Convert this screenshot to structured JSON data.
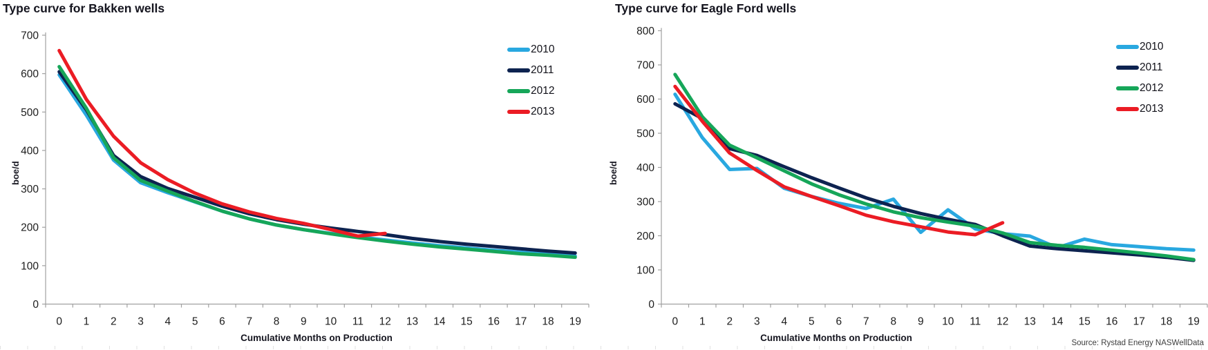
{
  "source": "Source: Rystad Energy NASWellData",
  "chart_data": [
    {
      "type": "line",
      "title": "Type curve for Bakken wells",
      "xlabel": "Cumulative Months on Production",
      "ylabel": "boe/d",
      "ylim": [
        0,
        700
      ],
      "ytick_step": 100,
      "grid": false,
      "legend_position": "inside-upper-right",
      "x": [
        0,
        1,
        2,
        3,
        4,
        5,
        6,
        7,
        8,
        9,
        10,
        11,
        12,
        13,
        14,
        15,
        16,
        17,
        18,
        19
      ],
      "series": [
        {
          "name": "2010",
          "color": "#29A8E0",
          "values": [
            597,
            492,
            375,
            316,
            290,
            266,
            242,
            222,
            206,
            194,
            184,
            175,
            167,
            159,
            152,
            146,
            140,
            135,
            130,
            125
          ]
        },
        {
          "name": "2011",
          "color": "#0D2350",
          "values": [
            605,
            506,
            387,
            332,
            301,
            278,
            255,
            235,
            220,
            208,
            198,
            189,
            181,
            171,
            163,
            156,
            150,
            144,
            138,
            133
          ]
        },
        {
          "name": "2012",
          "color": "#16A659",
          "values": [
            618,
            510,
            381,
            322,
            294,
            267,
            242,
            222,
            206,
            194,
            183,
            173,
            164,
            156,
            149,
            143,
            137,
            131,
            127,
            122
          ]
        },
        {
          "name": "2013",
          "color": "#EB1C24",
          "values": [
            660,
            533,
            437,
            368,
            324,
            289,
            261,
            240,
            223,
            210,
            194,
            177,
            184
          ]
        }
      ]
    },
    {
      "type": "line",
      "title": "Type curve for Eagle Ford wells",
      "xlabel": "Cumulative Months on Production",
      "ylabel": "boe/d",
      "ylim": [
        0,
        800
      ],
      "ytick_step": 100,
      "grid": false,
      "legend_position": "inside-upper-right",
      "x": [
        0,
        1,
        2,
        3,
        4,
        5,
        6,
        7,
        8,
        9,
        10,
        11,
        12,
        13,
        14,
        15,
        16,
        17,
        18,
        19
      ],
      "series": [
        {
          "name": "2010",
          "color": "#29A8E0",
          "values": [
            614,
            487,
            394,
            397,
            339,
            315,
            295,
            280,
            307,
            210,
            276,
            220,
            206,
            199,
            165,
            190,
            174,
            168,
            162,
            158
          ]
        },
        {
          "name": "2011",
          "color": "#0D2350",
          "values": [
            586,
            543,
            455,
            435,
            402,
            370,
            340,
            311,
            286,
            265,
            248,
            233,
            200,
            170,
            162,
            156,
            150,
            144,
            137,
            128
          ]
        },
        {
          "name": "2012",
          "color": "#16A659",
          "values": [
            672,
            548,
            465,
            428,
            390,
            352,
            320,
            293,
            270,
            253,
            240,
            228,
            208,
            180,
            172,
            166,
            158,
            150,
            141,
            130
          ]
        },
        {
          "name": "2013",
          "color": "#EB1C24",
          "values": [
            637,
            535,
            442,
            391,
            343,
            315,
            288,
            260,
            241,
            226,
            211,
            203,
            238
          ]
        }
      ]
    }
  ]
}
